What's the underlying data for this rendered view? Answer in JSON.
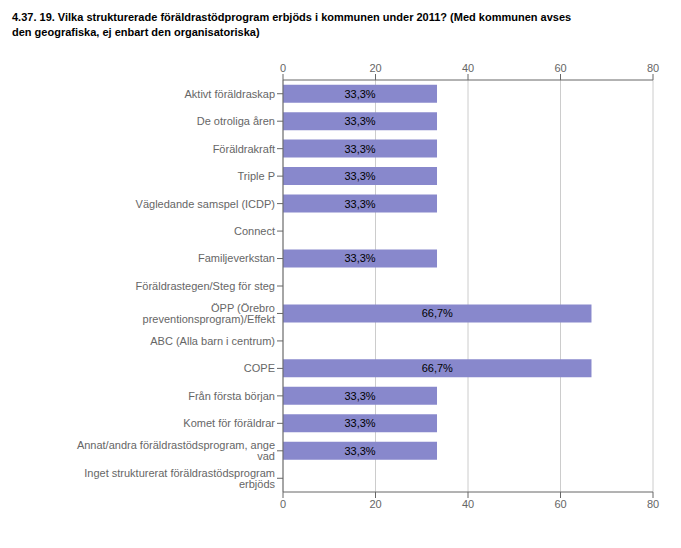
{
  "chart_data": {
    "type": "bar",
    "orientation": "horizontal",
    "title": "4.37. 19. Vilka strukturerade föräldrastödprogram erbjöds i kommunen under 2011? (Med kommunen avses",
    "subtitle": "den geografiska, ej enbart den organisatoriska)",
    "categories": [
      "Aktivt föräldraskap",
      "De otroliga åren",
      "Föräldrakraft",
      "Triple P",
      "Vägledande samspel (ICDP)",
      "Connect",
      "Familjeverkstan",
      "Föräldrastegen/Steg för steg",
      "ÖPP (Örebro preventionsprogram)/Effekt",
      "ABC (Alla barn i centrum)",
      "COPE",
      "Från första början",
      "Komet för föräldrar",
      "Annat/andra föräldrastödsprogram, ange vad",
      "Inget strukturerat föräldrastödsprogram erbjöds"
    ],
    "values": [
      33.3,
      33.3,
      33.3,
      33.3,
      33.3,
      0,
      33.3,
      0,
      66.7,
      0,
      66.7,
      33.3,
      33.3,
      33.3,
      0
    ],
    "value_labels": [
      "33,3%",
      "33,3%",
      "33,3%",
      "33,3%",
      "33,3%",
      null,
      "33,3%",
      null,
      "66,7%",
      null,
      "66,7%",
      "33,3%",
      "33,3%",
      "33,3%",
      null
    ],
    "data_labels": true,
    "color": "#8888cc",
    "xlim": [
      0,
      80
    ],
    "xticks": [
      0,
      20,
      40,
      60,
      80
    ],
    "grid": true
  }
}
